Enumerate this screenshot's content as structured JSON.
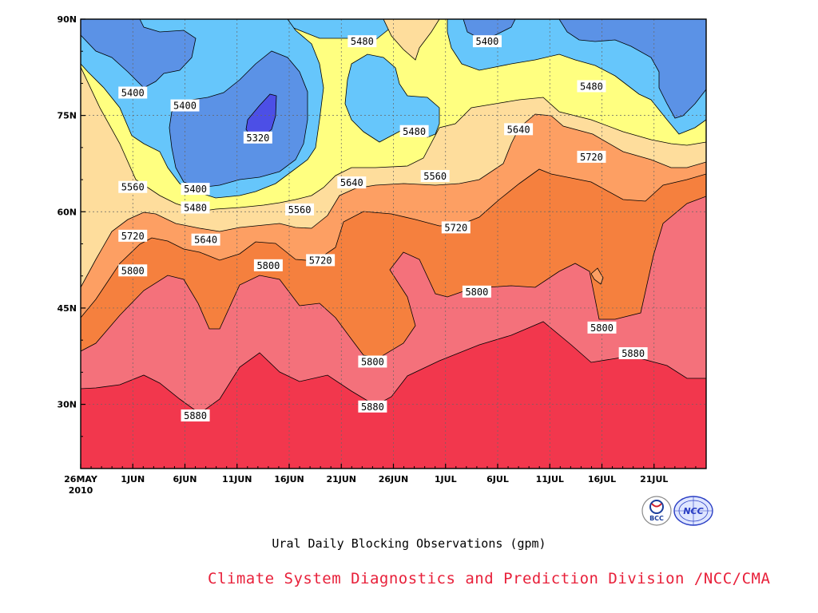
{
  "chart_data": {
    "type": "contour",
    "title": "Ural Daily Blocking Observations (gpm)",
    "x_tick_labels": [
      "26MAY",
      "1JUN",
      "6JUN",
      "11JUN",
      "16JUN",
      "21JUN",
      "26JUN",
      "1JUL",
      "6JUL",
      "11JUL",
      "16JUL",
      "21JUL"
    ],
    "x_first_year": "2010",
    "y_tick_labels": [
      "90N",
      "75N",
      "60N",
      "45N",
      "30N"
    ],
    "x_range": [
      "2010-05-26",
      "2010-07-25"
    ],
    "y_range": [
      20,
      90
    ],
    "grid": true,
    "contour_levels": [
      5320,
      5400,
      5480,
      5560,
      5640,
      5720,
      5800,
      5880
    ],
    "fill_colors": {
      "5880": "#f2374d",
      "5800": "#f4717b",
      "5720": "#f5803e",
      "5640": "#fd9f63",
      "5560": "#fedd9c",
      "5480": "#ffff80",
      "5400": "#66c6fb",
      "5320": "#5b92e6",
      "low": "#4c4fe6"
    },
    "contour_labels": [
      {
        "text": "5400",
        "date": "2010-05-31",
        "lat": 78.5
      },
      {
        "text": "5400",
        "date": "2010-06-05",
        "lat": 76.5
      },
      {
        "text": "5320",
        "date": "2010-06-12",
        "lat": 71.5
      },
      {
        "text": "5400",
        "date": "2010-06-06",
        "lat": 63.5
      },
      {
        "text": "5480",
        "date": "2010-06-22",
        "lat": 86.5
      },
      {
        "text": "5480",
        "date": "2010-06-27",
        "lat": 72.5
      },
      {
        "text": "5400",
        "date": "2010-07-04",
        "lat": 86.5
      },
      {
        "text": "5480",
        "date": "2010-07-14",
        "lat": 79.5
      },
      {
        "text": "5560",
        "date": "2010-05-31",
        "lat": 63.8
      },
      {
        "text": "5480",
        "date": "2010-06-06",
        "lat": 60.6
      },
      {
        "text": "5560",
        "date": "2010-06-16",
        "lat": 60.3
      },
      {
        "text": "5640",
        "date": "2010-06-07",
        "lat": 55.6
      },
      {
        "text": "5640",
        "date": "2010-06-21",
        "lat": 64.5
      },
      {
        "text": "5560",
        "date": "2010-06-29",
        "lat": 65.5
      },
      {
        "text": "5640",
        "date": "2010-07-07",
        "lat": 72.8
      },
      {
        "text": "5720",
        "date": "2010-05-31",
        "lat": 56.2
      },
      {
        "text": "5720",
        "date": "2010-06-18",
        "lat": 52.4
      },
      {
        "text": "5720",
        "date": "2010-07-01",
        "lat": 57.5
      },
      {
        "text": "5720",
        "date": "2010-07-14",
        "lat": 68.5
      },
      {
        "text": "5800",
        "date": "2010-05-31",
        "lat": 50.8
      },
      {
        "text": "5800",
        "date": "2010-06-13",
        "lat": 51.6
      },
      {
        "text": "5800",
        "date": "2010-07-03",
        "lat": 47.5
      },
      {
        "text": "5800",
        "date": "2010-06-23",
        "lat": 36.6
      },
      {
        "text": "5800",
        "date": "2010-07-15",
        "lat": 41.9
      },
      {
        "text": "5880",
        "date": "2010-07-18",
        "lat": 37.9
      },
      {
        "text": "5880",
        "date": "2010-06-06",
        "lat": 28.2
      },
      {
        "text": "5880",
        "date": "2010-06-23",
        "lat": 29.6
      }
    ]
  },
  "credit": "Climate System Diagnostics and Prediction Division /NCC/CMA",
  "logos": {
    "bcc_text": "BCC",
    "ncc_text": "NCC"
  }
}
